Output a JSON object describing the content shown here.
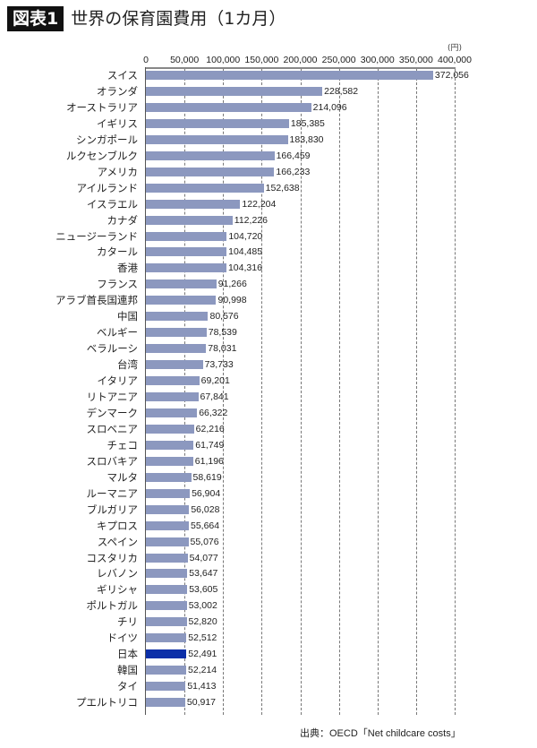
{
  "header": {
    "badge": "図表1",
    "title": "世界の保育園費用（1カ月）"
  },
  "source": "出典：OECD「Net childcare costs」",
  "colors": {
    "bar": "#8c98bf",
    "highlight": "#0b2fa8"
  },
  "chart_data": {
    "type": "bar",
    "orientation": "horizontal",
    "title": "世界の保育園費用（1カ月）",
    "xlabel": "",
    "ylabel": "",
    "unit_label": "(円)",
    "xlim": [
      0,
      400000
    ],
    "xticks": [
      "0",
      "50,000",
      "100,000",
      "150,000",
      "200,000",
      "250,000",
      "300,000",
      "350,000",
      "400,000"
    ],
    "xtick_values": [
      0,
      50000,
      100000,
      150000,
      200000,
      250000,
      300000,
      350000,
      400000
    ],
    "grid": "vertical dashed",
    "highlight_category": "日本",
    "categories": [
      "スイス",
      "オランダ",
      "オーストラリア",
      "イギリス",
      "シンガポール",
      "ルクセンブルク",
      "アメリカ",
      "アイルランド",
      "イスラエル",
      "カナダ",
      "ニュージーランド",
      "カタール",
      "香港",
      "フランス",
      "アラブ首長国連邦",
      "中国",
      "ベルギー",
      "ベラルーシ",
      "台湾",
      "イタリア",
      "リトアニア",
      "デンマーク",
      "スロベニア",
      "チェコ",
      "スロバキア",
      "マルタ",
      "ルーマニア",
      "ブルガリア",
      "キプロス",
      "スペイン",
      "コスタリカ",
      "レバノン",
      "ギリシャ",
      "ポルトガル",
      "チリ",
      "ドイツ",
      "日本",
      "韓国",
      "タイ",
      "プエルトリコ"
    ],
    "values": [
      372056,
      228582,
      214096,
      185385,
      183830,
      166459,
      166233,
      152638,
      122204,
      112226,
      104720,
      104485,
      104316,
      91266,
      90998,
      80576,
      78539,
      78031,
      73733,
      69201,
      67841,
      66322,
      62216,
      61749,
      61196,
      58619,
      56904,
      56028,
      55664,
      55076,
      54077,
      53647,
      53605,
      53002,
      52820,
      52512,
      52491,
      52214,
      51413,
      50917
    ],
    "value_labels": [
      "372,056",
      "228,582",
      "214,096",
      "185,385",
      "183,830",
      "166,459",
      "166,233",
      "152,638",
      "122,204",
      "112,226",
      "104,720",
      "104,485",
      "104,316",
      "91,266",
      "90,998",
      "80,576",
      "78,539",
      "78,031",
      "73,733",
      "69,201",
      "67,841",
      "66,322",
      "62,216",
      "61,749",
      "61,196",
      "58,619",
      "56,904",
      "56,028",
      "55,664",
      "55,076",
      "54,077",
      "53,647",
      "53,605",
      "53,002",
      "52,820",
      "52,512",
      "52,491",
      "52,214",
      "51,413",
      "50,917"
    ]
  }
}
